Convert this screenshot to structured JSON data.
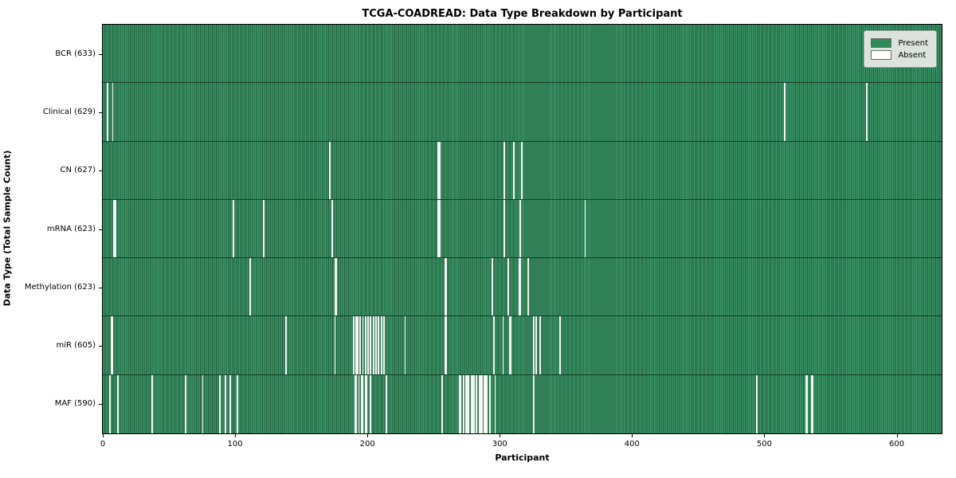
{
  "title": "TCGA-COADREAD: Data Type Breakdown by Participant",
  "legend": {
    "items": [
      {
        "label": "Present",
        "color": "#2e8b57"
      },
      {
        "label": "Absent",
        "color": "#ffffff"
      }
    ]
  },
  "colors": {
    "present": "#2e8b57",
    "present_light": "#3b9569",
    "present_dark": "#205f3d",
    "absent": "#f7f7f7",
    "row_divider": "#143d26",
    "axis": "#000000",
    "legend_bg": "#dce3dc"
  },
  "chart_data": {
    "type": "heatmap",
    "title": "TCGA-COADREAD: Data Type Breakdown by Participant",
    "xlabel": "Participant",
    "ylabel": "Data Type (Total Sample Count)",
    "legend_entries": [
      "Present",
      "Absent"
    ],
    "legend_position": "upper right",
    "grid": false,
    "x_ticks": [
      0,
      100,
      200,
      300,
      400,
      500,
      600
    ],
    "x_max": 634,
    "n_participants": 633,
    "rows": [
      {
        "label": "BCR (633)",
        "name": "BCR",
        "total": 633,
        "absent": []
      },
      {
        "label": "Clinical (629)",
        "name": "Clinical",
        "total": 629,
        "absent": [
          3,
          7,
          515,
          577
        ]
      },
      {
        "label": "CN (627)",
        "name": "CN",
        "total": 627,
        "absent": [
          171,
          253,
          254,
          303,
          310,
          316
        ]
      },
      {
        "label": "mRNA (623)",
        "name": "mRNA",
        "total": 623,
        "absent": [
          8,
          9,
          98,
          121,
          173,
          253,
          254,
          303,
          315,
          364
        ]
      },
      {
        "label": "Methylation (623)",
        "name": "Methylation",
        "total": 623,
        "absent": [
          111,
          175,
          176,
          258,
          259,
          294,
          306,
          314,
          315,
          321
        ]
      },
      {
        "label": "miR (605)",
        "name": "miR",
        "total": 605,
        "absent": [
          6,
          7,
          138,
          175,
          189,
          191,
          192,
          194,
          196,
          198,
          200,
          202,
          204,
          206,
          208,
          210,
          212,
          228,
          258,
          259,
          295,
          302,
          307,
          308,
          325,
          327,
          330,
          345
        ]
      },
      {
        "label": "MAF (590)",
        "name": "MAF",
        "total": 590,
        "absent": [
          5,
          11,
          37,
          62,
          75,
          88,
          92,
          96,
          101,
          190,
          191,
          193,
          195,
          196,
          198,
          199,
          202,
          214,
          256,
          269,
          270,
          272,
          274,
          275,
          276,
          278,
          279,
          280,
          282,
          284,
          285,
          286,
          288,
          289,
          290,
          292,
          296,
          325,
          494,
          531,
          532,
          535,
          536
        ]
      }
    ]
  }
}
